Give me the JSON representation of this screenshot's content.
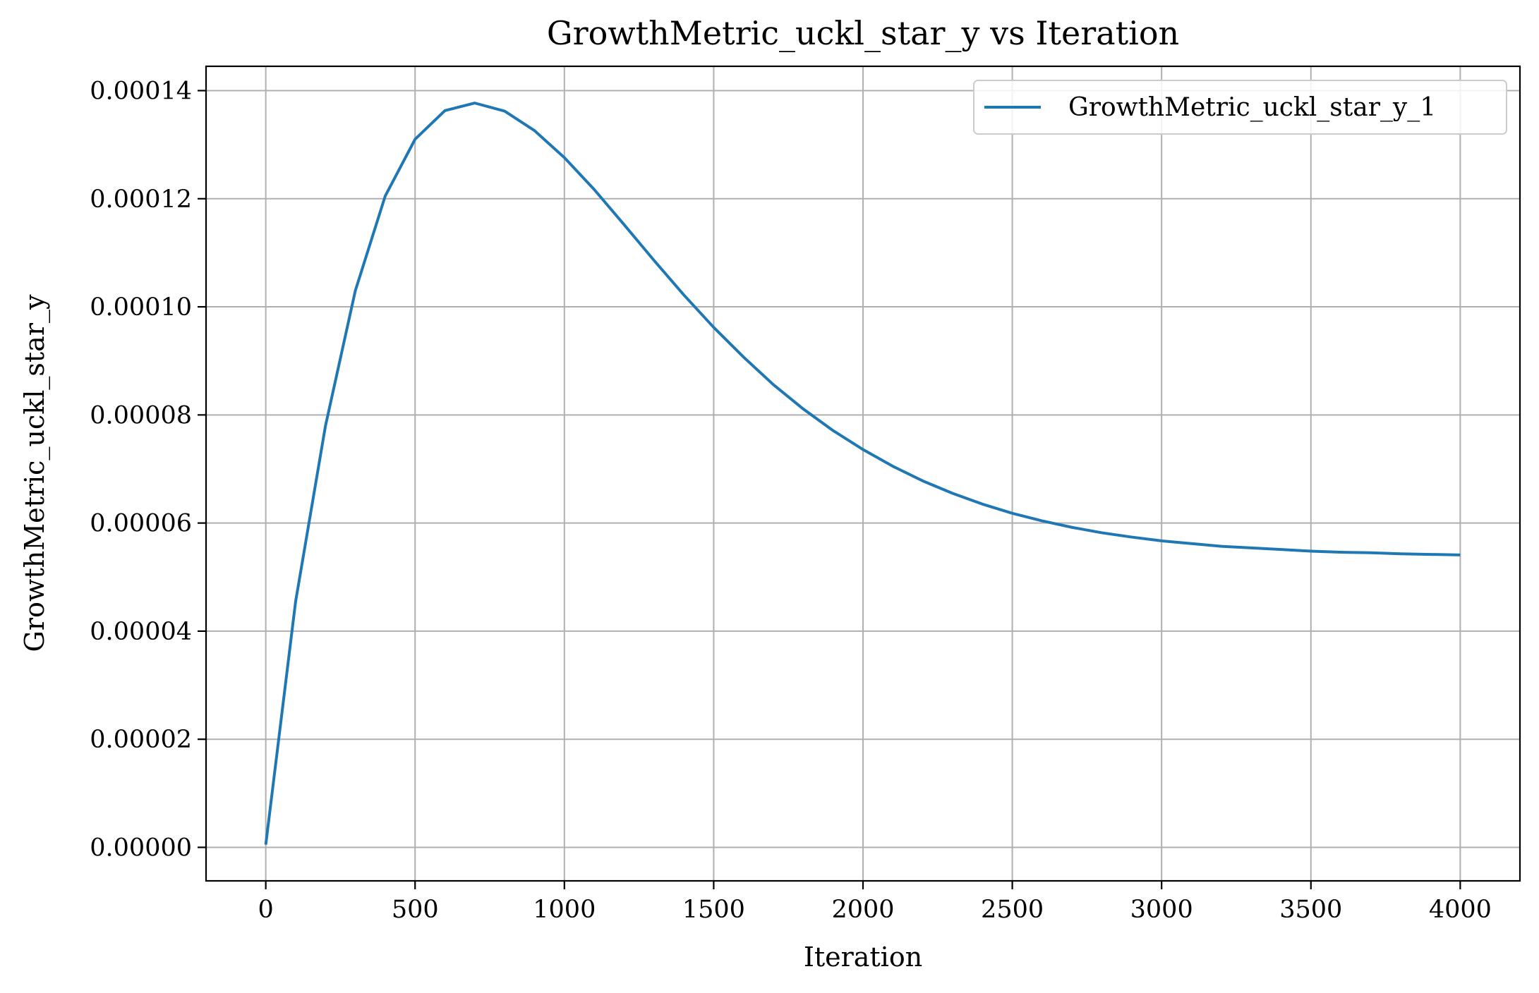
{
  "chart_data": {
    "type": "line",
    "title": "GrowthMetric_uckl_star_y vs Iteration",
    "xlabel": "Iteration",
    "ylabel": "GrowthMetric_uckl_star_y",
    "xlim": [
      -200,
      4200
    ],
    "ylim": [
      -6.2e-06,
      0.0001445
    ],
    "x_ticks": [
      0,
      500,
      1000,
      1500,
      2000,
      2500,
      3000,
      3500,
      4000
    ],
    "x_tick_labels": [
      "0",
      "500",
      "1000",
      "1500",
      "2000",
      "2500",
      "3000",
      "3500",
      "4000"
    ],
    "y_ticks": [
      0,
      2e-05,
      4e-05,
      6e-05,
      8e-05,
      0.0001,
      0.00012,
      0.00014
    ],
    "y_tick_labels": [
      "0.00000",
      "0.00002",
      "0.00004",
      "0.00006",
      "0.00008",
      "0.00010",
      "0.00012",
      "0.00014"
    ],
    "grid": true,
    "legend_position": "top-right",
    "series": [
      {
        "name": "GrowthMetric_uckl_star_y_1",
        "color": "#1f77b4",
        "x": [
          0,
          100,
          200,
          300,
          400,
          500,
          600,
          700,
          800,
          900,
          1000,
          1100,
          1200,
          1300,
          1400,
          1500,
          1600,
          1700,
          1800,
          1900,
          2000,
          2100,
          2200,
          2300,
          2400,
          2500,
          2600,
          2700,
          2800,
          2900,
          3000,
          3100,
          3200,
          3300,
          3400,
          3500,
          3600,
          3700,
          3800,
          3900,
          4000
        ],
        "y": [
          5e-07,
          4.55e-05,
          7.8e-05,
          0.000103,
          0.0001205,
          0.000131,
          0.0001363,
          0.0001377,
          0.0001362,
          0.0001326,
          0.0001276,
          0.0001217,
          0.0001152,
          0.0001086,
          0.0001022,
          9.62e-05,
          9.07e-05,
          8.56e-05,
          8.11e-05,
          7.71e-05,
          7.36e-05,
          7.05e-05,
          6.78e-05,
          6.55e-05,
          6.35e-05,
          6.18e-05,
          6.04e-05,
          5.92e-05,
          5.82e-05,
          5.74e-05,
          5.67e-05,
          5.62e-05,
          5.57e-05,
          5.54e-05,
          5.51e-05,
          5.48e-05,
          5.46e-05,
          5.45e-05,
          5.43e-05,
          5.42e-05,
          5.41e-05
        ]
      }
    ]
  }
}
